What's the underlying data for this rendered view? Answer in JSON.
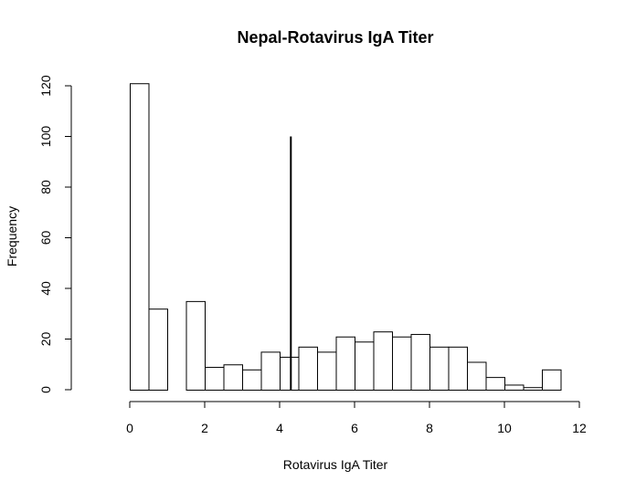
{
  "chart_data": {
    "type": "bar",
    "title": "Nepal-Rotavirus IgA Titer",
    "xlabel": "Rotavirus IgA Titer",
    "ylabel": "Frequency",
    "xlim": [
      0,
      12
    ],
    "ylim": [
      0,
      120
    ],
    "xticks": [
      "0",
      "2",
      "4",
      "6",
      "8",
      "10",
      "12"
    ],
    "yticks": [
      "0",
      "20",
      "40",
      "60",
      "80",
      "100",
      "120"
    ],
    "bin_width": 0.5,
    "bins": [
      {
        "x0": 0.0,
        "x1": 0.5,
        "count": 121
      },
      {
        "x0": 0.5,
        "x1": 1.0,
        "count": 32
      },
      {
        "x0": 1.0,
        "x1": 1.5,
        "count": 0
      },
      {
        "x0": 1.5,
        "x1": 2.0,
        "count": 35
      },
      {
        "x0": 2.0,
        "x1": 2.5,
        "count": 9
      },
      {
        "x0": 2.5,
        "x1": 3.0,
        "count": 10
      },
      {
        "x0": 3.0,
        "x1": 3.5,
        "count": 8
      },
      {
        "x0": 3.5,
        "x1": 4.0,
        "count": 15
      },
      {
        "x0": 4.0,
        "x1": 4.5,
        "count": 13
      },
      {
        "x0": 4.5,
        "x1": 5.0,
        "count": 17
      },
      {
        "x0": 5.0,
        "x1": 5.5,
        "count": 15
      },
      {
        "x0": 5.5,
        "x1": 6.0,
        "count": 21
      },
      {
        "x0": 6.0,
        "x1": 6.5,
        "count": 19
      },
      {
        "x0": 6.5,
        "x1": 7.0,
        "count": 23
      },
      {
        "x0": 7.0,
        "x1": 7.5,
        "count": 21
      },
      {
        "x0": 7.5,
        "x1": 8.0,
        "count": 22
      },
      {
        "x0": 8.0,
        "x1": 8.5,
        "count": 17
      },
      {
        "x0": 8.5,
        "x1": 9.0,
        "count": 17
      },
      {
        "x0": 9.0,
        "x1": 9.5,
        "count": 11
      },
      {
        "x0": 9.5,
        "x1": 10.0,
        "count": 5
      },
      {
        "x0": 10.0,
        "x1": 10.5,
        "count": 2
      },
      {
        "x0": 10.5,
        "x1": 11.0,
        "count": 1
      },
      {
        "x0": 11.0,
        "x1": 11.5,
        "count": 8
      }
    ],
    "reference_line": {
      "x": 4.3,
      "y0": 0,
      "y1": 100
    },
    "grid": false,
    "legend": "none",
    "colors": {
      "bar_fill": "#ffffff",
      "bar_stroke": "#000000",
      "line": "#000000"
    }
  }
}
